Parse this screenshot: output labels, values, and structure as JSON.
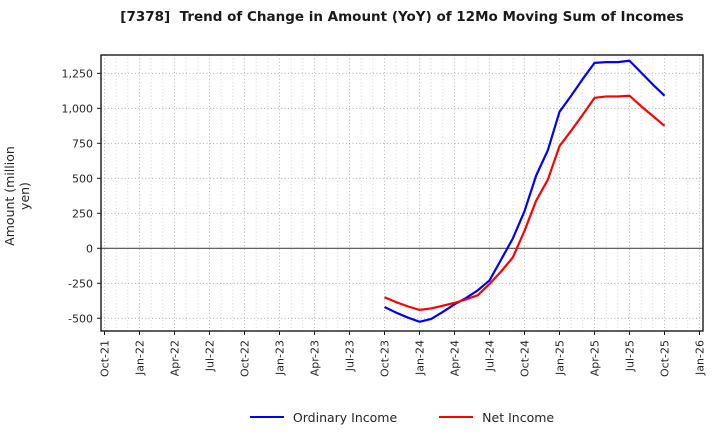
{
  "chart_data": {
    "type": "line",
    "title": "[7378]  Trend of Change in Amount (YoY) of 12Mo Moving Sum of Incomes",
    "ylabel": "Amount (million yen)",
    "background_color": "#ffffff",
    "grid": true,
    "legend_position": "bottom",
    "x_axis": {
      "tick_labels": [
        "Oct-21",
        "Jan-22",
        "Apr-22",
        "Jul-22",
        "Oct-22",
        "Jan-23",
        "Apr-23",
        "Jul-23",
        "Oct-23",
        "Jan-24",
        "Apr-24",
        "Jul-24",
        "Oct-24",
        "Jan-25",
        "Apr-25",
        "Jul-25",
        "Oct-25",
        "Jan-26"
      ],
      "months_per_tick": 3,
      "total_months": 51,
      "xlim_margin_months": 0.3
    },
    "y_axis": {
      "ylim": [
        -591,
        1381
      ],
      "ticks": [
        {
          "value": -500,
          "label": "-500"
        },
        {
          "value": -250,
          "label": "-250"
        },
        {
          "value": 0,
          "label": "0"
        },
        {
          "value": 250,
          "label": "250"
        },
        {
          "value": 500,
          "label": "500"
        },
        {
          "value": 750,
          "label": "750"
        },
        {
          "value": 1000,
          "label": "1,000"
        },
        {
          "value": 1250,
          "label": "1,250"
        }
      ],
      "zero_line": true
    },
    "data_months": [
      "Oct-23",
      "Nov-23",
      "Dec-23",
      "Jan-24",
      "Feb-24",
      "Mar-24",
      "Apr-24",
      "May-24",
      "Jun-24",
      "Jul-24",
      "Aug-24",
      "Sep-24",
      "Oct-24",
      "Nov-24",
      "Dec-24",
      "Jan-25",
      "Feb-25",
      "Mar-25",
      "Apr-25",
      "May-25",
      "Jun-25",
      "Jul-25",
      "Aug-25",
      "Sep-25",
      "Oct-25"
    ],
    "series": [
      {
        "name": "Ordinary Income",
        "color": "#0000ff",
        "start_month_index": 24,
        "values": [
          -420,
          -460,
          -495,
          -525,
          -505,
          -455,
          -400,
          -355,
          -300,
          -230,
          -80,
          70,
          265,
          520,
          700,
          975,
          1090,
          1210,
          1325,
          1330,
          1330,
          1340,
          1255,
          1170,
          1090
        ]
      },
      {
        "name": "Net Income",
        "color": "#ff0000",
        "start_month_index": 24,
        "values": [
          -350,
          -385,
          -415,
          -440,
          -430,
          -410,
          -390,
          -365,
          -335,
          -255,
          -165,
          -65,
          125,
          340,
          490,
          730,
          840,
          955,
          1075,
          1085,
          1085,
          1090,
          1015,
          945,
          875
        ]
      }
    ]
  }
}
